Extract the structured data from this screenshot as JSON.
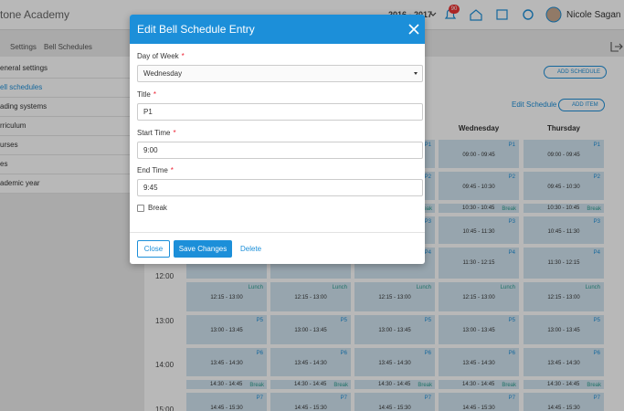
{
  "header": {
    "school": "tone Academy",
    "year": "2016 - 2017",
    "notifications": "90",
    "user": "Nicole Sagan"
  },
  "breadcrumb": [
    "Settings",
    "Bell Schedules"
  ],
  "sidebar": [
    "eneral settings",
    "ell schedules",
    "ading systems",
    "rriculum",
    "urses",
    "es",
    "ademic year"
  ],
  "toolbar": {
    "add_schedule": "ADD SCHEDULE",
    "edit_schedule": "Edit Schedule",
    "add_item": "ADD ITEM"
  },
  "schedule": {
    "days": [
      "Wednesday",
      "Thursday"
    ],
    "hours": [
      "12:00",
      "13:00",
      "14:00",
      "15:00"
    ],
    "rows": [
      {
        "label": "P1",
        "time": "09:00 - 09:45"
      },
      {
        "label": "P2",
        "time": "09:45 - 10:30"
      },
      {
        "label": "Break",
        "time": "10:30 - 10:45"
      },
      {
        "label": "P3",
        "time": "10:45 - 11:30"
      },
      {
        "label": "P4",
        "time": "11:30 - 12:15"
      },
      {
        "label": "Lunch",
        "time": "12:15 - 13:00"
      },
      {
        "label": "P5",
        "time": "13:00 - 13:45"
      },
      {
        "label": "P6",
        "time": "13:45 - 14:30"
      },
      {
        "label": "Break",
        "time": "14:30 - 14:45"
      },
      {
        "label": "P7",
        "time": "14:45 - 15:30"
      }
    ]
  },
  "modal": {
    "title": "Edit Bell Schedule Entry",
    "required_mark": "*",
    "fields": [
      {
        "label": "Day of Week",
        "value": "Wednesday"
      },
      {
        "label": "Title",
        "value": "P1"
      },
      {
        "label": "Start Time",
        "value": "9:00"
      },
      {
        "label": "End Time",
        "value": "9:45"
      }
    ],
    "checkbox": "Break",
    "close": "Close",
    "save": "Save Changes",
    "delete": "Delete"
  }
}
